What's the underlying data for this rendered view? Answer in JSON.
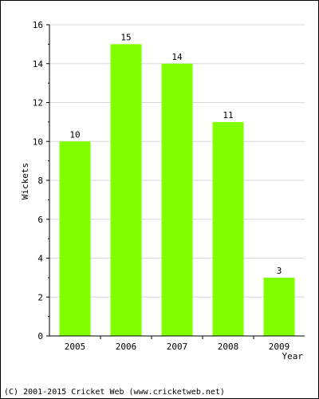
{
  "chart_data": {
    "type": "bar",
    "categories": [
      "2005",
      "2006",
      "2007",
      "2008",
      "2009"
    ],
    "values": [
      10,
      15,
      14,
      11,
      3
    ],
    "title": "",
    "xlabel": "Year",
    "ylabel": "Wickets",
    "ylim": [
      0,
      16
    ],
    "yticks": [
      0,
      2,
      4,
      6,
      8,
      10,
      12,
      14,
      16
    ],
    "grid": true,
    "bar_color": "#80ff00"
  },
  "footer": {
    "copyright": "(C) 2001-2015 Cricket Web (www.cricketweb.net)"
  }
}
